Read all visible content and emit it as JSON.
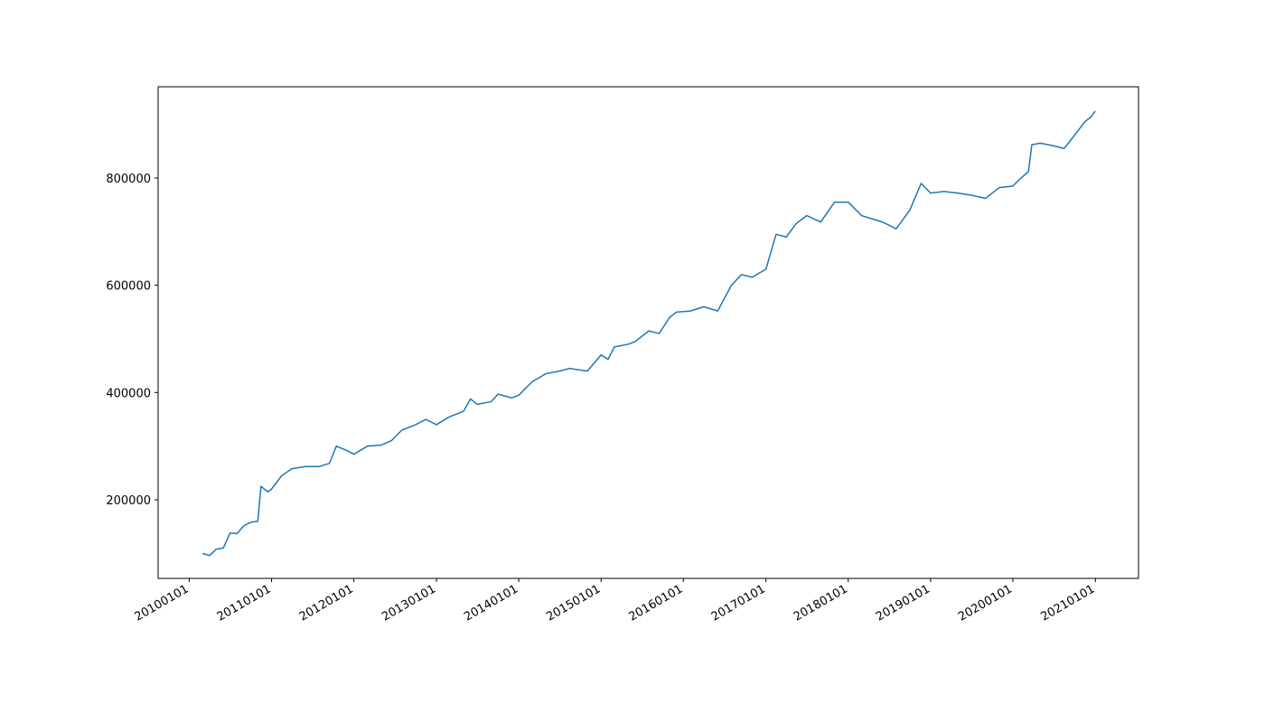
{
  "chart_data": {
    "type": "line",
    "x": [
      "2010-03-01",
      "2010-04-01",
      "2010-05-01",
      "2010-06-01",
      "2010-07-01",
      "2010-08-01",
      "2010-09-01",
      "2010-10-01",
      "2010-11-01",
      "2010-11-15",
      "2010-12-15",
      "2011-01-01",
      "2011-02-15",
      "2011-04-01",
      "2011-06-01",
      "2011-08-01",
      "2011-09-15",
      "2011-10-15",
      "2011-12-01",
      "2012-01-01",
      "2012-03-01",
      "2012-05-01",
      "2012-06-15",
      "2012-08-01",
      "2012-10-01",
      "2012-11-15",
      "2013-01-01",
      "2013-03-01",
      "2013-05-01",
      "2013-06-01",
      "2013-07-01",
      "2013-09-01",
      "2013-10-01",
      "2013-12-01",
      "2014-01-01",
      "2014-03-01",
      "2014-05-01",
      "2014-07-01",
      "2014-08-15",
      "2014-11-01",
      "2015-01-01",
      "2015-02-01",
      "2015-03-01",
      "2015-05-01",
      "2015-06-01",
      "2015-08-01",
      "2015-09-15",
      "2015-11-01",
      "2015-12-01",
      "2016-02-01",
      "2016-04-01",
      "2016-06-01",
      "2016-08-01",
      "2016-09-15",
      "2016-11-01",
      "2017-01-01",
      "2017-02-15",
      "2017-04-01",
      "2017-05-15",
      "2017-07-01",
      "2017-09-01",
      "2017-11-01",
      "2018-01-01",
      "2018-03-01",
      "2018-05-01",
      "2018-06-01",
      "2018-07-01",
      "2018-08-01",
      "2018-10-01",
      "2018-11-20",
      "2019-01-01",
      "2019-03-01",
      "2019-05-01",
      "2019-07-01",
      "2019-09-01",
      "2019-11-01",
      "2020-01-01",
      "2020-02-01",
      "2020-03-10",
      "2020-03-25",
      "2020-05-01",
      "2020-07-01",
      "2020-08-15",
      "2020-10-01",
      "2020-11-15",
      "2020-12-15",
      "2020-12-31"
    ],
    "series": [
      {
        "color": "#1f77b4",
        "values": [
          100000,
          96000,
          108000,
          110000,
          138000,
          137000,
          152000,
          158000,
          160000,
          225000,
          215000,
          220000,
          245000,
          258000,
          262000,
          262000,
          268000,
          300000,
          292000,
          285000,
          300000,
          302000,
          310000,
          330000,
          340000,
          350000,
          340000,
          355000,
          365000,
          388000,
          378000,
          383000,
          397000,
          390000,
          395000,
          420000,
          435000,
          440000,
          445000,
          440000,
          470000,
          462000,
          485000,
          490000,
          495000,
          515000,
          510000,
          540000,
          550000,
          552000,
          560000,
          552000,
          600000,
          620000,
          615000,
          630000,
          695000,
          690000,
          715000,
          730000,
          718000,
          755000,
          755000,
          730000,
          722000,
          718000,
          712000,
          705000,
          740000,
          790000,
          772000,
          775000,
          772000,
          768000,
          762000,
          782000,
          785000,
          798000,
          812000,
          862000,
          865000,
          860000,
          855000,
          880000,
          905000,
          915000,
          925000
        ]
      }
    ],
    "xlim": [
      "2009-08-16",
      "2021-07-11"
    ],
    "xticks": [
      {
        "value": "2010-01-01",
        "label": "20100101"
      },
      {
        "value": "2011-01-01",
        "label": "20110101"
      },
      {
        "value": "2012-01-01",
        "label": "20120101"
      },
      {
        "value": "2013-01-01",
        "label": "20130101"
      },
      {
        "value": "2014-01-01",
        "label": "20140101"
      },
      {
        "value": "2015-01-01",
        "label": "20150101"
      },
      {
        "value": "2016-01-01",
        "label": "20160101"
      },
      {
        "value": "2017-01-01",
        "label": "20170101"
      },
      {
        "value": "2018-01-01",
        "label": "20180101"
      },
      {
        "value": "2019-01-01",
        "label": "20190101"
      },
      {
        "value": "2020-01-01",
        "label": "20200101"
      },
      {
        "value": "2021-01-01",
        "label": "20210101"
      }
    ],
    "ylim": [
      53400,
      970200
    ],
    "yticks": [
      200000,
      400000,
      600000,
      800000
    ],
    "grid": false
  }
}
